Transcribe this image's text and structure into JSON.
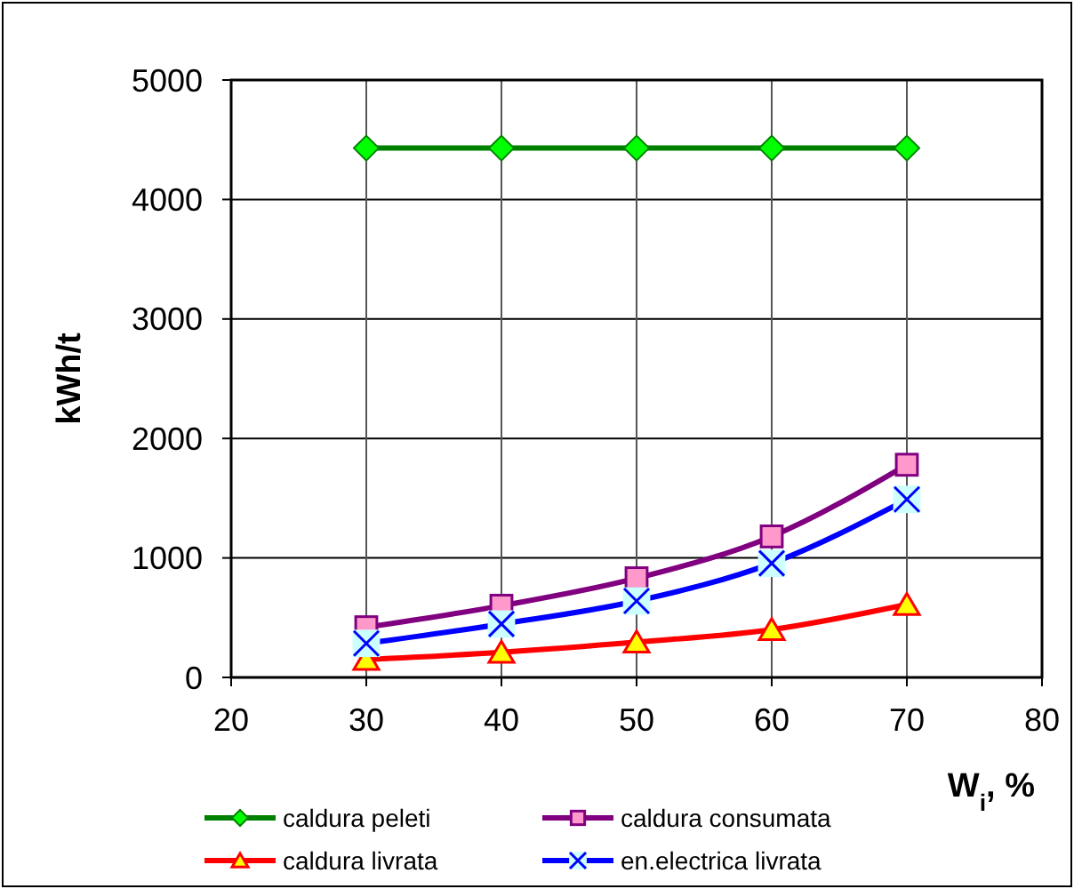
{
  "chart_data": {
    "type": "line",
    "xlabel": "W$_{i}$, %",
    "ylabel": "kWh/t",
    "x": [
      30,
      40,
      50,
      60,
      70
    ],
    "xlim": [
      20,
      80
    ],
    "xticks": [
      20,
      30,
      40,
      50,
      60,
      70,
      80
    ],
    "ylim": [
      0,
      5000
    ],
    "yticks": [
      0,
      1000,
      2000,
      3000,
      4000,
      5000
    ],
    "grid": true,
    "legend": "bottom",
    "series": [
      {
        "name": "caldura peleti",
        "color": "#008000",
        "marker": "diamond",
        "values": [
          4430,
          4430,
          4430,
          4430,
          4430
        ]
      },
      {
        "name": "caldura consumata",
        "color": "#800080",
        "marker": "square",
        "values": [
          420,
          600,
          830,
          1180,
          1780
        ]
      },
      {
        "name": "caldura livrata",
        "color": "#ff0000",
        "marker": "triangle",
        "values": [
          150,
          210,
          295,
          400,
          610
        ]
      },
      {
        "name": "en.electrica livrata",
        "color": "#0000ff",
        "marker": "cross",
        "values": [
          285,
          447,
          640,
          955,
          1490
        ]
      }
    ]
  }
}
